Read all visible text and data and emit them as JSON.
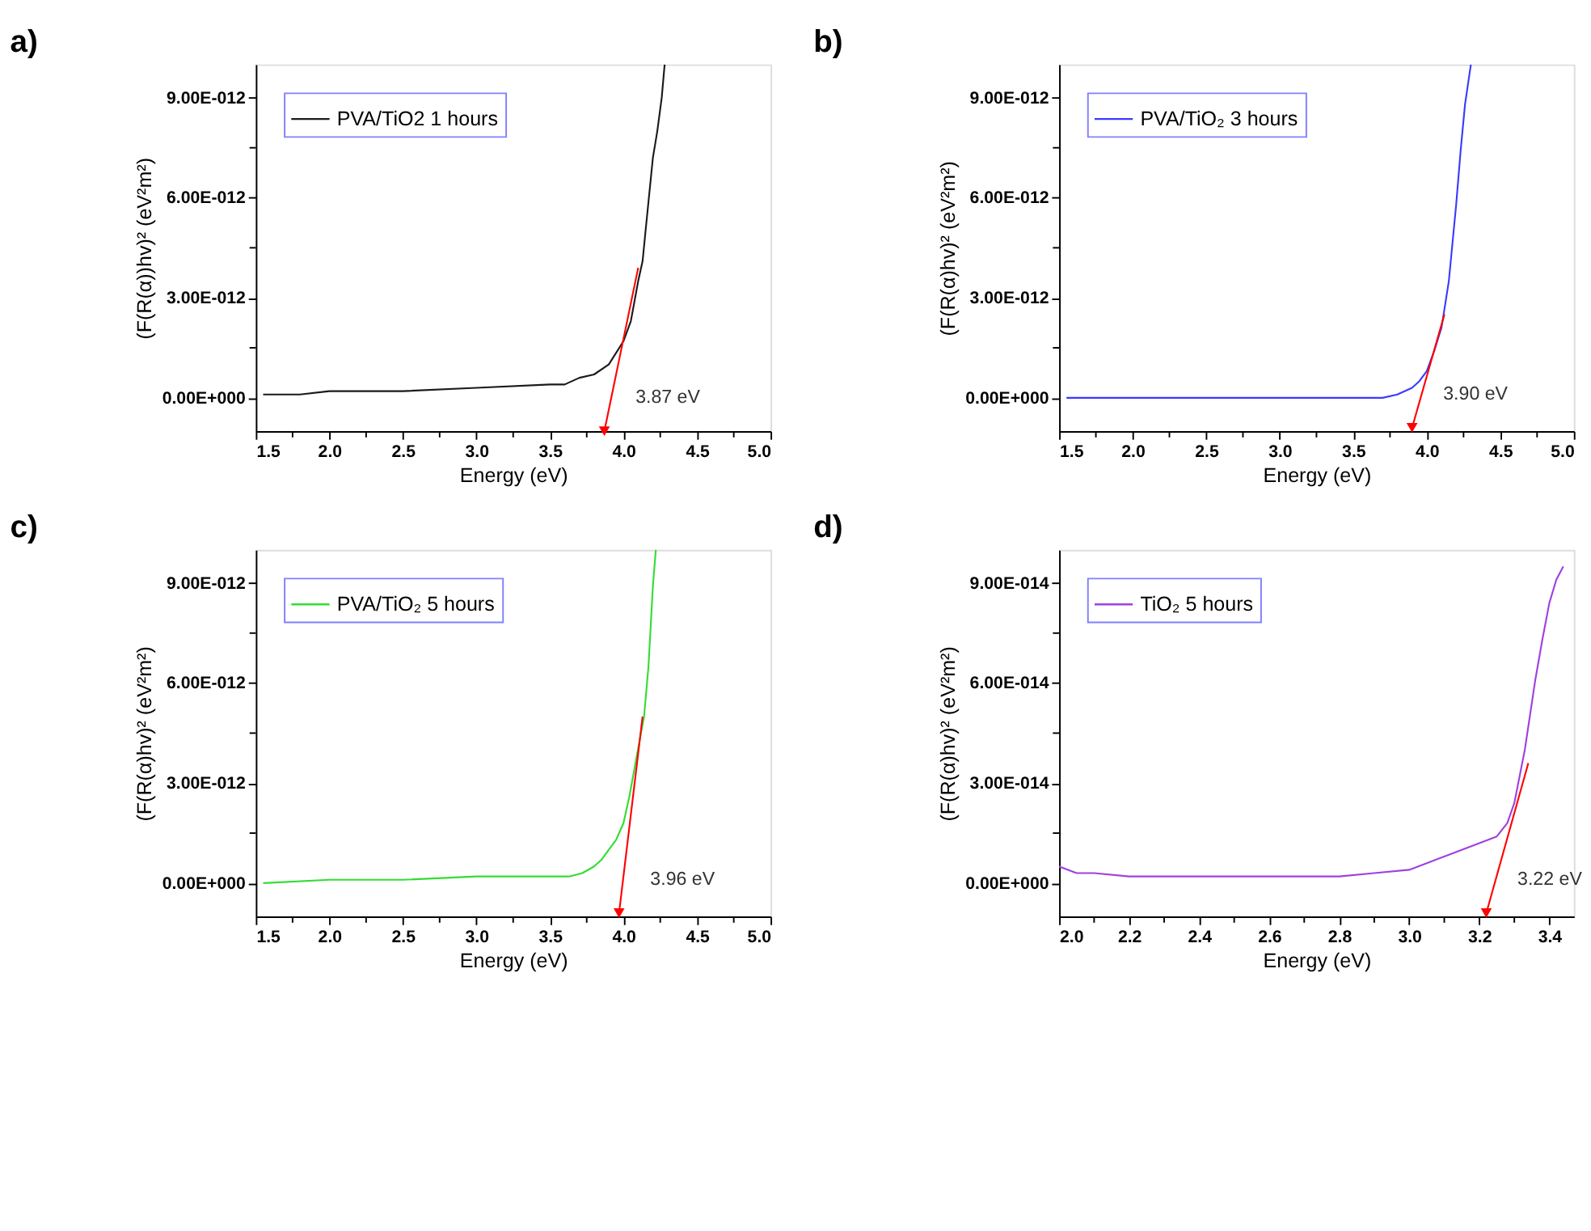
{
  "chart_data": [
    {
      "type": "line",
      "title": "a)",
      "xlabel": "Energy (eV)",
      "ylabel": "(F(R(α))hv)² (eV²m²)",
      "legend": "top left",
      "grid": false,
      "xlim": [
        1.5,
        5.0
      ],
      "ylim": [
        -1e-12,
        1e-11
      ],
      "xticks": [
        {
          "value": 1.5,
          "label": "1.5"
        },
        {
          "value": 1.75,
          "label": null
        },
        {
          "value": 2.0,
          "label": "2.0"
        },
        {
          "value": 2.25,
          "label": null
        },
        {
          "value": 2.5,
          "label": "2.5"
        },
        {
          "value": 2.75,
          "label": null
        },
        {
          "value": 3.0,
          "label": "3.0"
        },
        {
          "value": 3.25,
          "label": null
        },
        {
          "value": 3.5,
          "label": "3.5"
        },
        {
          "value": 3.75,
          "label": null
        },
        {
          "value": 4.0,
          "label": "4.0"
        },
        {
          "value": 4.25,
          "label": null
        },
        {
          "value": 4.5,
          "label": "4.5"
        },
        {
          "value": 4.75,
          "label": null
        },
        {
          "value": 5.0,
          "label": "5.0"
        }
      ],
      "yticks": [
        {
          "value": 0,
          "label": "0.00E+000"
        },
        {
          "value": 1.5e-12,
          "label": null
        },
        {
          "value": 3e-12,
          "label": "3.00E-012"
        },
        {
          "value": 4.5e-12,
          "label": null
        },
        {
          "value": 6e-12,
          "label": "6.00E-012"
        },
        {
          "value": 7.5e-12,
          "label": null
        },
        {
          "value": 9e-12,
          "label": "9.00E-012"
        }
      ],
      "series": [
        {
          "name": "PVA/TiO2 1 hours",
          "color": "#1a1a1a",
          "x": [
            1.55,
            1.8,
            2.0,
            2.5,
            3.0,
            3.5,
            3.6,
            3.7,
            3.8,
            3.9,
            4.0,
            4.05,
            4.1,
            4.13,
            4.15,
            4.2,
            4.23,
            4.26,
            4.28
          ],
          "values": [
            1e-13,
            1e-13,
            2e-13,
            2e-13,
            3e-13,
            4e-13,
            4e-13,
            6e-13,
            7e-13,
            1e-12,
            1.7e-12,
            2.3e-12,
            3.5e-12,
            4.1e-12,
            5e-12,
            7.2e-12,
            8e-12,
            9e-12,
            1e-11
          ]
        },
        {
          "color": "#ff0000",
          "x": [
            4.1,
            3.87
          ],
          "values": [
            3.9e-12,
            -1e-12
          ]
        }
      ],
      "annotations": [
        {
          "text": "3.87 eV",
          "x": 3.87,
          "y": -1e-12
        }
      ]
    },
    {
      "type": "line",
      "title": "b)",
      "xlabel": "Energy (eV)",
      "ylabel": "(F(R(α)hv)² (eV²m²)",
      "legend": "top left",
      "grid": false,
      "xlim": [
        1.5,
        5.0
      ],
      "ylim": [
        -1e-12,
        1e-11
      ],
      "xticks": [
        {
          "value": 1.5,
          "label": "1.5"
        },
        {
          "value": 1.75,
          "label": null
        },
        {
          "value": 2.0,
          "label": "2.0"
        },
        {
          "value": 2.25,
          "label": null
        },
        {
          "value": 2.5,
          "label": "2.5"
        },
        {
          "value": 2.75,
          "label": null
        },
        {
          "value": 3.0,
          "label": "3.0"
        },
        {
          "value": 3.25,
          "label": null
        },
        {
          "value": 3.5,
          "label": "3.5"
        },
        {
          "value": 3.75,
          "label": null
        },
        {
          "value": 4.0,
          "label": "4.0"
        },
        {
          "value": 4.25,
          "label": null
        },
        {
          "value": 4.5,
          "label": "4.5"
        },
        {
          "value": 4.75,
          "label": null
        },
        {
          "value": 5.0,
          "label": "5.0"
        }
      ],
      "yticks": [
        {
          "value": 0,
          "label": "0.00E+000"
        },
        {
          "value": 1.5e-12,
          "label": null
        },
        {
          "value": 3e-12,
          "label": "3.00E-012"
        },
        {
          "value": 4.5e-12,
          "label": null
        },
        {
          "value": 6e-12,
          "label": "6.00E-012"
        },
        {
          "value": 7.5e-12,
          "label": null
        },
        {
          "value": 9e-12,
          "label": "9.00E-012"
        }
      ],
      "series": [
        {
          "name": "PVA/TiO₂ 3 hours",
          "color": "#3a3aff",
          "x": [
            1.55,
            2.0,
            2.5,
            3.0,
            3.5,
            3.6,
            3.7,
            3.8,
            3.9,
            3.95,
            4.0,
            4.05,
            4.1,
            4.15,
            4.2,
            4.23,
            4.26,
            4.3
          ],
          "values": [
            0,
            0,
            0,
            0,
            0,
            0,
            0,
            1e-13,
            3e-13,
            5e-13,
            8e-13,
            1.4e-12,
            2.1e-12,
            3.5e-12,
            5.8e-12,
            7.4e-12,
            8.8e-12,
            1e-11
          ]
        },
        {
          "color": "#ff0000",
          "x": [
            4.12,
            3.9
          ],
          "values": [
            2.5e-12,
            -9e-13
          ]
        }
      ],
      "annotations": [
        {
          "text": "3.90 eV",
          "x": 3.9,
          "y": -9e-13
        }
      ]
    },
    {
      "type": "line",
      "title": "c)",
      "xlabel": "Energy (eV)",
      "ylabel": "(F(R(α)hv)² (eV²m²)",
      "legend": "top left",
      "grid": false,
      "xlim": [
        1.5,
        5.0
      ],
      "ylim": [
        -1e-12,
        1e-11
      ],
      "xticks": [
        {
          "value": 1.5,
          "label": "1.5"
        },
        {
          "value": 1.75,
          "label": null
        },
        {
          "value": 2.0,
          "label": "2.0"
        },
        {
          "value": 2.25,
          "label": null
        },
        {
          "value": 2.5,
          "label": "2.5"
        },
        {
          "value": 2.75,
          "label": null
        },
        {
          "value": 3.0,
          "label": "3.0"
        },
        {
          "value": 3.25,
          "label": null
        },
        {
          "value": 3.5,
          "label": "3.5"
        },
        {
          "value": 3.75,
          "label": null
        },
        {
          "value": 4.0,
          "label": "4.0"
        },
        {
          "value": 4.25,
          "label": null
        },
        {
          "value": 4.5,
          "label": "4.5"
        },
        {
          "value": 4.75,
          "label": null
        },
        {
          "value": 5.0,
          "label": "5.0"
        }
      ],
      "yticks": [
        {
          "value": 0,
          "label": "0.00E+000"
        },
        {
          "value": 1.5e-12,
          "label": null
        },
        {
          "value": 3e-12,
          "label": "3.00E-012"
        },
        {
          "value": 4.5e-12,
          "label": null
        },
        {
          "value": 6e-12,
          "label": "6.00E-012"
        },
        {
          "value": 7.5e-12,
          "label": null
        },
        {
          "value": 9e-12,
          "label": "9.00E-012"
        }
      ],
      "series": [
        {
          "name": "PVA/TiO₂ 5 hours",
          "color": "#33dd33",
          "x": [
            1.55,
            2.0,
            2.5,
            3.0,
            3.5,
            3.63,
            3.72,
            3.8,
            3.85,
            3.9,
            3.95,
            4.0,
            4.04,
            4.09,
            4.14,
            4.17,
            4.2,
            4.22
          ],
          "values": [
            0,
            1e-13,
            1e-13,
            2e-13,
            2e-13,
            2e-13,
            3e-13,
            5e-13,
            7e-13,
            1e-12,
            1.3e-12,
            1.8e-12,
            2.6e-12,
            3.8e-12,
            5e-12,
            6.5e-12,
            8.9e-12,
            1e-11
          ]
        },
        {
          "color": "#ff0000",
          "x": [
            4.13,
            3.97
          ],
          "values": [
            5e-12,
            -9e-13
          ]
        }
      ],
      "annotations": [
        {
          "text": "3.96 eV",
          "x": 3.97,
          "y": -9e-13
        }
      ]
    },
    {
      "type": "line",
      "title": "d)",
      "xlabel": "Energy (eV)",
      "ylabel": "(F(R(α)hv)² (eV²m²)",
      "legend": "top left",
      "grid": false,
      "xlim": [
        2.0,
        3.47
      ],
      "ylim": [
        -1e-14,
        1e-13
      ],
      "xticks": [
        {
          "value": 2.0,
          "label": "2.0"
        },
        {
          "value": 2.1,
          "label": null
        },
        {
          "value": 2.2,
          "label": "2.2"
        },
        {
          "value": 2.3,
          "label": null
        },
        {
          "value": 2.4,
          "label": "2.4"
        },
        {
          "value": 2.5,
          "label": null
        },
        {
          "value": 2.6,
          "label": "2.6"
        },
        {
          "value": 2.7,
          "label": null
        },
        {
          "value": 2.8,
          "label": "2.8"
        },
        {
          "value": 2.9,
          "label": null
        },
        {
          "value": 3.0,
          "label": "3.0"
        },
        {
          "value": 3.1,
          "label": null
        },
        {
          "value": 3.2,
          "label": "3.2"
        },
        {
          "value": 3.3,
          "label": null
        },
        {
          "value": 3.4,
          "label": "3.4"
        }
      ],
      "yticks": [
        {
          "value": 0,
          "label": "0.00E+000"
        },
        {
          "value": 1.5e-14,
          "label": null
        },
        {
          "value": 3e-14,
          "label": "3.00E-014"
        },
        {
          "value": 4.5e-14,
          "label": null
        },
        {
          "value": 6e-14,
          "label": "6.00E-014"
        },
        {
          "value": 7.5e-14,
          "label": null
        },
        {
          "value": 9e-14,
          "label": "9.00E-014"
        }
      ],
      "series": [
        {
          "name": "TiO₂ 5 hours",
          "color": "#a040e0",
          "x": [
            2.0,
            2.05,
            2.1,
            2.2,
            2.4,
            2.6,
            2.8,
            2.9,
            3.0,
            3.05,
            3.1,
            3.15,
            3.2,
            3.25,
            3.28,
            3.3,
            3.33,
            3.36,
            3.38,
            3.4,
            3.42,
            3.44
          ],
          "values": [
            5e-15,
            3e-15,
            3e-15,
            2e-15,
            2e-15,
            2e-15,
            2e-15,
            3e-15,
            4e-15,
            6e-15,
            8e-15,
            1e-14,
            1.2e-14,
            1.4e-14,
            1.8e-14,
            2.4e-14,
            4e-14,
            6.1e-14,
            7.3e-14,
            8.4e-14,
            9.1e-14,
            9.5e-14
          ]
        },
        {
          "color": "#ff0000",
          "x": [
            3.34,
            3.22
          ],
          "values": [
            3.6e-14,
            -9e-15
          ]
        }
      ],
      "annotations": [
        {
          "text": "3.22 eV",
          "x": 3.22,
          "y": -9e-15
        }
      ]
    }
  ]
}
